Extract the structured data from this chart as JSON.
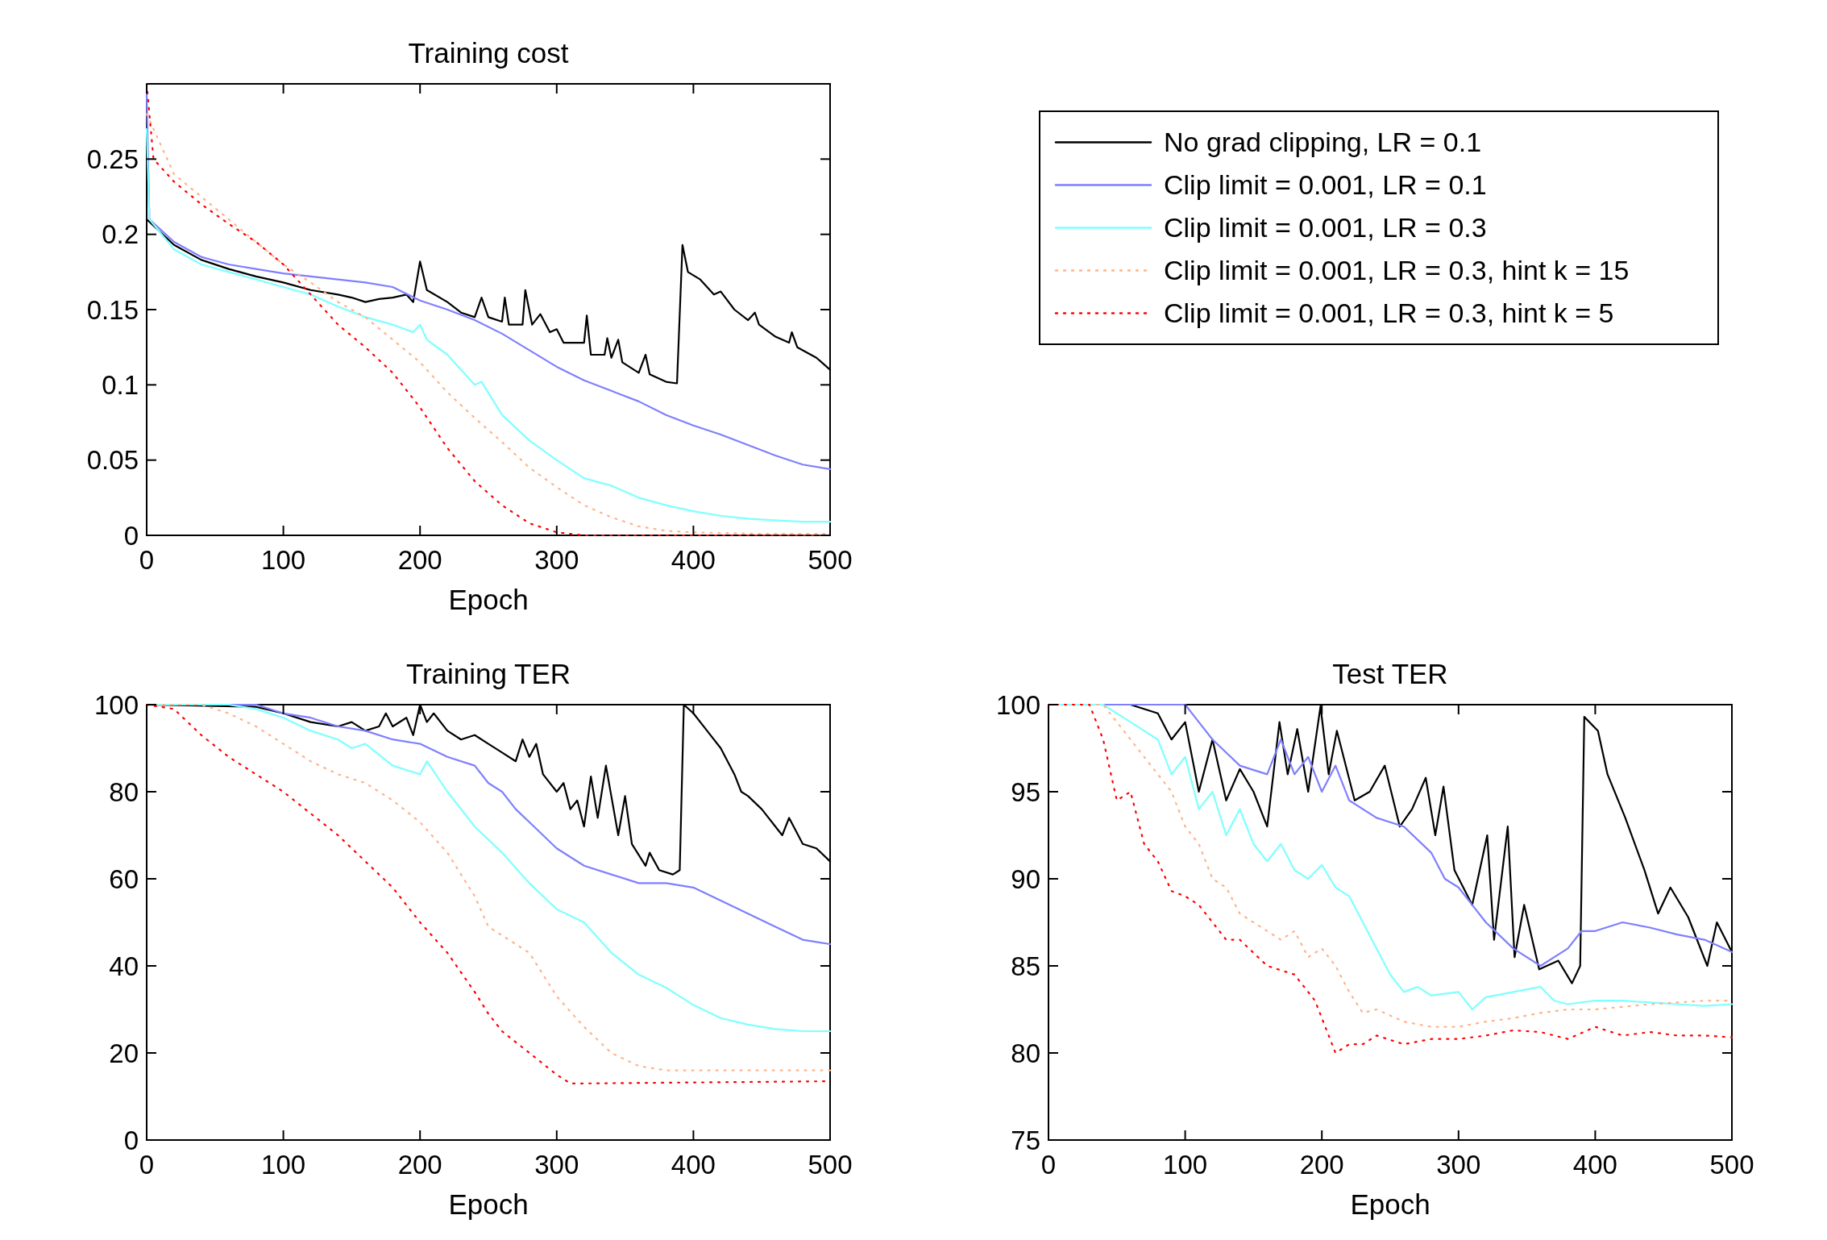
{
  "chart_data": [
    {
      "type": "line",
      "title": "Training cost",
      "xlabel": "Epoch",
      "xlim": [
        0,
        500
      ],
      "xticks": [
        0,
        100,
        200,
        300,
        400,
        500
      ],
      "ylim": [
        0,
        0.3
      ],
      "yticks": [
        0,
        0.05,
        0.1,
        0.15,
        0.2,
        0.25
      ],
      "legend": "right",
      "series": [
        {
          "name": "No grad clipping, LR = 0.1",
          "color": "#000000",
          "line_style": "solid",
          "x": [
            0,
            20,
            40,
            60,
            80,
            100,
            120,
            140,
            150,
            160,
            170,
            180,
            190,
            195,
            200,
            205,
            220,
            230,
            240,
            245,
            250,
            260,
            262,
            265,
            275,
            277,
            282,
            288,
            295,
            300,
            305,
            320,
            322,
            325,
            335,
            337,
            340,
            345,
            348,
            360,
            365,
            368,
            380,
            388,
            392,
            396,
            405,
            415,
            420,
            430,
            440,
            445,
            448,
            460,
            470,
            472,
            476,
            490,
            500
          ],
          "values": [
            0.21,
            0.193,
            0.183,
            0.177,
            0.172,
            0.168,
            0.163,
            0.16,
            0.158,
            0.155,
            0.157,
            0.158,
            0.16,
            0.155,
            0.182,
            0.163,
            0.155,
            0.148,
            0.145,
            0.158,
            0.145,
            0.142,
            0.158,
            0.14,
            0.14,
            0.163,
            0.14,
            0.147,
            0.135,
            0.137,
            0.128,
            0.128,
            0.146,
            0.12,
            0.12,
            0.131,
            0.118,
            0.13,
            0.115,
            0.108,
            0.12,
            0.107,
            0.102,
            0.101,
            0.193,
            0.175,
            0.17,
            0.16,
            0.162,
            0.15,
            0.143,
            0.148,
            0.14,
            0.132,
            0.128,
            0.135,
            0.125,
            0.118,
            0.11
          ]
        },
        {
          "name": "Clip limit = 0.001, LR = 0.1",
          "color": "#7f7fff",
          "line_style": "solid",
          "x": [
            0,
            2,
            20,
            40,
            60,
            80,
            100,
            120,
            140,
            160,
            180,
            200,
            220,
            240,
            260,
            280,
            300,
            320,
            340,
            360,
            380,
            400,
            420,
            440,
            460,
            480,
            500
          ],
          "values": [
            0.293,
            0.21,
            0.195,
            0.185,
            0.18,
            0.177,
            0.174,
            0.172,
            0.17,
            0.168,
            0.165,
            0.156,
            0.15,
            0.143,
            0.134,
            0.123,
            0.112,
            0.103,
            0.096,
            0.089,
            0.08,
            0.073,
            0.067,
            0.06,
            0.053,
            0.047,
            0.044
          ]
        },
        {
          "name": "Clip limit = 0.001, LR = 0.3",
          "color": "#7fffff",
          "line_style": "solid",
          "x": [
            0,
            2,
            20,
            40,
            60,
            80,
            100,
            120,
            140,
            160,
            180,
            195,
            200,
            205,
            220,
            240,
            245,
            260,
            280,
            300,
            320,
            340,
            360,
            380,
            400,
            420,
            440,
            460,
            480,
            500
          ],
          "values": [
            0.27,
            0.21,
            0.19,
            0.18,
            0.175,
            0.17,
            0.165,
            0.16,
            0.152,
            0.145,
            0.14,
            0.135,
            0.14,
            0.13,
            0.12,
            0.1,
            0.102,
            0.08,
            0.063,
            0.05,
            0.038,
            0.033,
            0.025,
            0.02,
            0.016,
            0.013,
            0.011,
            0.01,
            0.009,
            0.009
          ]
        },
        {
          "name": "Clip limit = 0.001, LR = 0.3, hint k = 15",
          "color": "#ffb38a",
          "line_style": "dotted",
          "x": [
            0,
            20,
            40,
            60,
            80,
            100,
            120,
            140,
            160,
            180,
            200,
            220,
            240,
            260,
            280,
            300,
            320,
            340,
            360,
            380,
            400,
            450,
            500
          ],
          "values": [
            0.28,
            0.24,
            0.225,
            0.21,
            0.195,
            0.18,
            0.168,
            0.155,
            0.145,
            0.13,
            0.115,
            0.095,
            0.078,
            0.062,
            0.045,
            0.032,
            0.02,
            0.012,
            0.006,
            0.003,
            0.002,
            0.001,
            0.001
          ]
        },
        {
          "name": "Clip limit = 0.001, LR = 0.3, hint k = 5",
          "color": "#ff0000",
          "line_style": "dotted",
          "x": [
            0,
            5,
            20,
            40,
            60,
            80,
            100,
            120,
            140,
            160,
            180,
            200,
            220,
            240,
            260,
            280,
            300,
            320,
            500
          ],
          "values": [
            0.3,
            0.25,
            0.235,
            0.22,
            0.207,
            0.195,
            0.18,
            0.16,
            0.14,
            0.125,
            0.108,
            0.085,
            0.058,
            0.036,
            0.02,
            0.008,
            0.002,
            0,
            0
          ]
        }
      ]
    },
    {
      "type": "line",
      "title": "Training TER",
      "xlabel": "Epoch",
      "xlim": [
        0,
        500
      ],
      "xticks": [
        0,
        100,
        200,
        300,
        400,
        500
      ],
      "ylim": [
        0,
        100
      ],
      "yticks": [
        0,
        20,
        40,
        60,
        80,
        100
      ],
      "series": [
        {
          "color": "#000000",
          "line_style": "solid",
          "x": [
            0,
            80,
            100,
            120,
            140,
            150,
            160,
            170,
            175,
            180,
            190,
            195,
            200,
            205,
            210,
            220,
            230,
            240,
            250,
            260,
            270,
            275,
            280,
            285,
            290,
            300,
            305,
            310,
            315,
            320,
            325,
            330,
            336,
            345,
            350,
            355,
            365,
            368,
            375,
            385,
            390,
            393,
            400,
            410,
            420,
            430,
            435,
            440,
            450,
            460,
            465,
            470,
            480,
            490,
            500
          ],
          "values": [
            100,
            99.5,
            98,
            96,
            95,
            96,
            94,
            95,
            98,
            95,
            97,
            93,
            100,
            96,
            98,
            94,
            92,
            93,
            91,
            89,
            87,
            92,
            88,
            91,
            84,
            80,
            82,
            76,
            78,
            72,
            83.5,
            74,
            86,
            70,
            79,
            68,
            63,
            66,
            62,
            61,
            62,
            100,
            98,
            94,
            90,
            84,
            80,
            79,
            76,
            72,
            70,
            74,
            68,
            67,
            64
          ]
        },
        {
          "color": "#7f7fff",
          "line_style": "solid",
          "x": [
            0,
            80,
            100,
            120,
            140,
            160,
            180,
            200,
            220,
            240,
            250,
            260,
            270,
            280,
            300,
            320,
            340,
            360,
            380,
            400,
            420,
            440,
            460,
            480,
            500
          ],
          "values": [
            100,
            100,
            98,
            97,
            95,
            94,
            92,
            91,
            88,
            86,
            82,
            80,
            76,
            73,
            67,
            63,
            61,
            59,
            59,
            58,
            55,
            52,
            49,
            46,
            45
          ]
        },
        {
          "color": "#7fffff",
          "line_style": "solid",
          "x": [
            0,
            60,
            80,
            100,
            120,
            140,
            150,
            160,
            180,
            200,
            205,
            220,
            240,
            260,
            280,
            300,
            320,
            340,
            360,
            380,
            400,
            420,
            440,
            460,
            480,
            500
          ],
          "values": [
            100,
            100,
            99,
            97,
            94,
            92,
            90,
            91,
            86,
            84,
            87,
            80,
            72,
            66,
            59,
            53,
            50,
            43,
            38,
            35,
            31,
            28,
            26.5,
            25.5,
            25,
            25
          ]
        },
        {
          "color": "#ffb38a",
          "line_style": "dotted",
          "x": [
            0,
            40,
            60,
            80,
            100,
            120,
            140,
            160,
            180,
            200,
            220,
            240,
            250,
            260,
            280,
            300,
            320,
            340,
            360,
            380,
            400,
            500
          ],
          "values": [
            100,
            100,
            98,
            95,
            91,
            87,
            84,
            82,
            78,
            73,
            66,
            56,
            49,
            47,
            43,
            33,
            26,
            20,
            17,
            16,
            16,
            16
          ]
        },
        {
          "color": "#ff0000",
          "line_style": "dotted",
          "x": [
            0,
            20,
            40,
            60,
            80,
            100,
            120,
            140,
            160,
            180,
            200,
            220,
            240,
            250,
            260,
            280,
            300,
            310,
            320,
            500
          ],
          "values": [
            100,
            99,
            93,
            88,
            84,
            80,
            75,
            70,
            64,
            58,
            50,
            43,
            34,
            29,
            25,
            20,
            15,
            13,
            13,
            13.5
          ]
        }
      ]
    },
    {
      "type": "line",
      "title": "Test TER",
      "xlabel": "Epoch",
      "xlim": [
        0,
        500
      ],
      "xticks": [
        0,
        100,
        200,
        300,
        400,
        500
      ],
      "ylim": [
        75,
        100
      ],
      "yticks": [
        75,
        80,
        85,
        90,
        95,
        100
      ],
      "series": [
        {
          "color": "#000000",
          "line_style": "solid",
          "x": [
            0,
            60,
            80,
            90,
            100,
            110,
            120,
            130,
            140,
            150,
            160,
            169,
            175,
            182,
            190,
            199,
            205,
            211,
            224,
            235,
            246,
            257,
            266,
            276,
            283,
            289,
            297,
            310,
            321,
            326,
            336,
            341,
            348,
            359,
            373,
            383,
            389,
            392,
            402,
            409,
            422,
            436,
            446,
            455,
            468,
            482,
            489,
            500
          ],
          "values": [
            100,
            100,
            99.5,
            98,
            99,
            95,
            98,
            94.5,
            96.3,
            95,
            93,
            99,
            96,
            98.6,
            95,
            99.9,
            96,
            98.5,
            94.5,
            95,
            96.5,
            93,
            94,
            95.8,
            92.5,
            95.3,
            90.5,
            88.5,
            92.5,
            86.5,
            93,
            85.5,
            88.5,
            84.8,
            85.3,
            84,
            85,
            99.3,
            98.5,
            96,
            93.5,
            90.5,
            88,
            89.5,
            87.8,
            85,
            87.5,
            85.8
          ]
        },
        {
          "color": "#7f7fff",
          "line_style": "solid",
          "x": [
            0,
            100,
            110,
            120,
            140,
            160,
            170,
            180,
            190,
            200,
            210,
            220,
            240,
            260,
            280,
            290,
            300,
            310,
            320,
            340,
            360,
            380,
            390,
            400,
            420,
            440,
            460,
            480,
            500
          ],
          "values": [
            100,
            100,
            99,
            98,
            96.5,
            96,
            98,
            96,
            97,
            95,
            96.5,
            94.5,
            93.5,
            93,
            91.5,
            90,
            89.5,
            88.5,
            87.5,
            86,
            85,
            86,
            87,
            87,
            87.5,
            87.2,
            86.8,
            86.5,
            85.8
          ]
        },
        {
          "color": "#7fffff",
          "line_style": "solid",
          "x": [
            0,
            40,
            60,
            80,
            90,
            100,
            110,
            120,
            130,
            140,
            150,
            160,
            170,
            180,
            190,
            200,
            210,
            220,
            230,
            240,
            250,
            260,
            270,
            280,
            300,
            310,
            320,
            340,
            360,
            370,
            380,
            400,
            420,
            440,
            460,
            480,
            500
          ],
          "values": [
            100,
            100,
            99,
            98,
            96,
            97,
            94,
            95,
            92.5,
            94,
            92,
            91,
            92,
            90.5,
            90,
            90.8,
            89.5,
            89,
            87.5,
            86,
            84.5,
            83.5,
            83.8,
            83.3,
            83.5,
            82.5,
            83.2,
            83.5,
            83.8,
            83,
            82.8,
            83,
            83,
            82.9,
            82.8,
            82.7,
            82.8
          ]
        },
        {
          "color": "#ffb38a",
          "line_style": "dotted",
          "x": [
            0,
            40,
            60,
            80,
            90,
            100,
            110,
            120,
            130,
            140,
            150,
            160,
            170,
            180,
            190,
            200,
            210,
            220,
            230,
            240,
            260,
            280,
            300,
            320,
            340,
            360,
            380,
            400,
            440,
            480,
            500
          ],
          "values": [
            100,
            100,
            98,
            96,
            95,
            93,
            92,
            90,
            89.5,
            88,
            87.5,
            87,
            86.5,
            87,
            85.5,
            86,
            85,
            83.5,
            82.3,
            82.5,
            81.8,
            81.5,
            81.5,
            81.8,
            82,
            82.3,
            82.5,
            82.5,
            82.8,
            83,
            83
          ]
        },
        {
          "color": "#ff0000",
          "line_style": "dotted",
          "x": [
            0,
            30,
            40,
            50,
            60,
            70,
            80,
            90,
            100,
            110,
            120,
            130,
            140,
            160,
            180,
            195,
            210,
            220,
            230,
            240,
            260,
            280,
            300,
            320,
            340,
            360,
            380,
            400,
            420,
            440,
            460,
            480,
            500
          ],
          "values": [
            100,
            100,
            98,
            94.5,
            95,
            92,
            91,
            89.3,
            89,
            88.5,
            87.5,
            86.5,
            86.5,
            85,
            84.5,
            83,
            80,
            80.5,
            80.5,
            81,
            80.5,
            80.8,
            80.8,
            81,
            81.3,
            81.2,
            80.8,
            81.5,
            81,
            81.2,
            81,
            81,
            80.9
          ]
        }
      ]
    }
  ]
}
